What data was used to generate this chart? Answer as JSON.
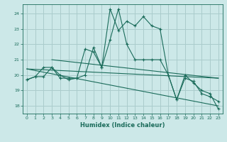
{
  "title": "",
  "xlabel": "Humidex (Indice chaleur)",
  "background_color": "#cce8e8",
  "grid_color": "#aacccc",
  "line_color": "#1a6b5a",
  "x_ticks": [
    0,
    1,
    2,
    3,
    4,
    5,
    6,
    7,
    8,
    9,
    10,
    11,
    12,
    13,
    14,
    15,
    16,
    17,
    18,
    19,
    20,
    21,
    22,
    23
  ],
  "y_ticks": [
    18,
    19,
    20,
    21,
    22,
    23,
    24
  ],
  "xlim": [
    -0.5,
    23.5
  ],
  "ylim": [
    17.5,
    24.6
  ],
  "series1_x": [
    0,
    1,
    2,
    3,
    4,
    5,
    6,
    7,
    8,
    9,
    10,
    11,
    12,
    13,
    14,
    15,
    16,
    17,
    18,
    19,
    20,
    21,
    22,
    23
  ],
  "series1_y": [
    19.7,
    19.9,
    19.9,
    20.5,
    19.8,
    19.8,
    19.8,
    20.0,
    21.8,
    20.5,
    24.3,
    22.9,
    23.5,
    23.2,
    23.8,
    23.2,
    23.0,
    20.0,
    18.4,
    19.8,
    19.6,
    18.8,
    18.6,
    18.3
  ],
  "series2_x": [
    0,
    1,
    2,
    3,
    4,
    5,
    6,
    7,
    8,
    9,
    10,
    11,
    12,
    13,
    14,
    15,
    16,
    17,
    18,
    19,
    20,
    21,
    22,
    23
  ],
  "series2_y": [
    19.7,
    19.9,
    20.5,
    20.5,
    20.0,
    19.7,
    19.8,
    21.7,
    21.5,
    20.5,
    22.3,
    24.3,
    22.0,
    21.0,
    21.0,
    21.0,
    21.0,
    20.0,
    18.4,
    20.0,
    19.5,
    19.0,
    18.8,
    17.8
  ],
  "series3_x": [
    0,
    23
  ],
  "series3_y": [
    20.4,
    19.8
  ],
  "series4_x": [
    0,
    23
  ],
  "series4_y": [
    20.4,
    18.0
  ],
  "series5_x": [
    3,
    23
  ],
  "series5_y": [
    21.0,
    19.8
  ]
}
